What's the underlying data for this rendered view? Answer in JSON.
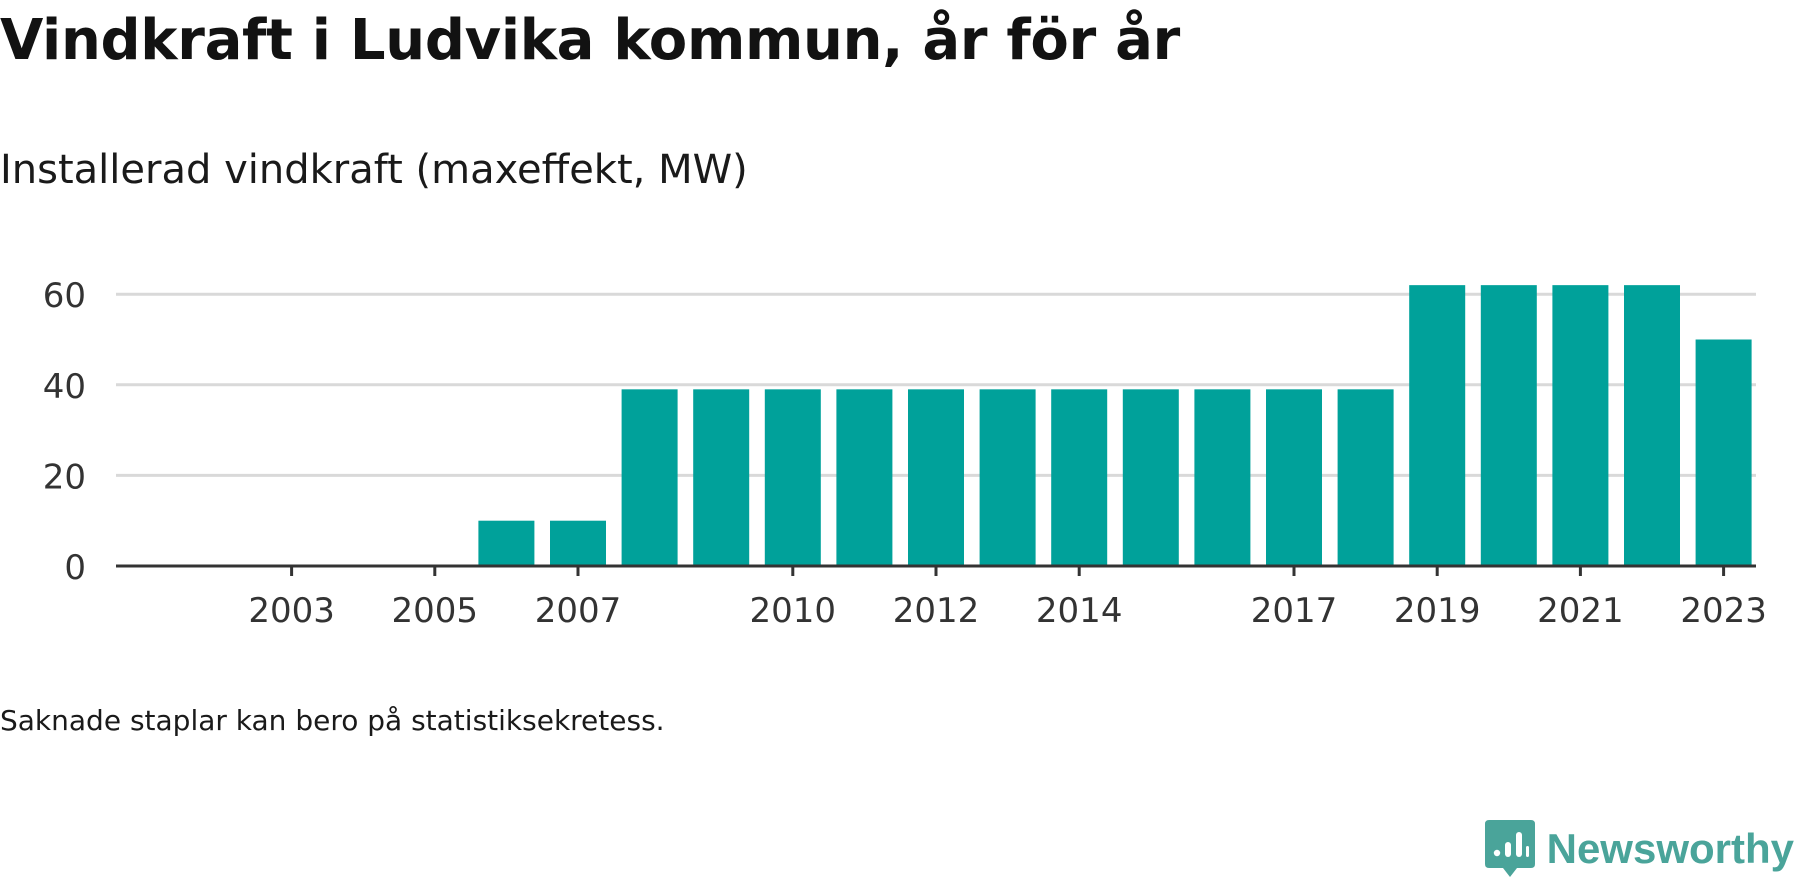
{
  "title": "Vindkraft i Ludvika kommun, år för år",
  "subtitle": "Installerad vindkraft (maxeffekt, MW)",
  "footnote": "Saknade staplar kan bero på statistiksekretess.",
  "brand": {
    "name": "Newsworthy",
    "logo_icon": "newsworthy-logo-icon",
    "color": "#4aa49a"
  },
  "colors": {
    "bar": "#00a19a",
    "grid": "#d9d9d9",
    "axis": "#333333"
  },
  "chart_data": {
    "type": "bar",
    "categories": [
      "2002",
      "2003",
      "2004",
      "2005",
      "2006",
      "2007",
      "2008",
      "2009",
      "2010",
      "2011",
      "2012",
      "2013",
      "2014",
      "2015",
      "2016",
      "2017",
      "2018",
      "2019",
      "2020",
      "2021",
      "2022",
      "2023"
    ],
    "values": [
      0,
      0,
      0,
      0,
      10,
      10,
      39,
      39,
      39,
      39,
      39,
      39,
      39,
      39,
      39,
      39,
      39,
      62,
      62,
      62,
      62,
      50
    ],
    "x_tick_labels": [
      "2003",
      "2005",
      "2007",
      "2010",
      "2012",
      "2014",
      "2017",
      "2019",
      "2021",
      "2023"
    ],
    "y_ticks": [
      0,
      20,
      40,
      60
    ],
    "ylim": [
      0,
      68
    ],
    "grid": true,
    "legend": "none",
    "xlabel": "",
    "ylabel": ""
  }
}
